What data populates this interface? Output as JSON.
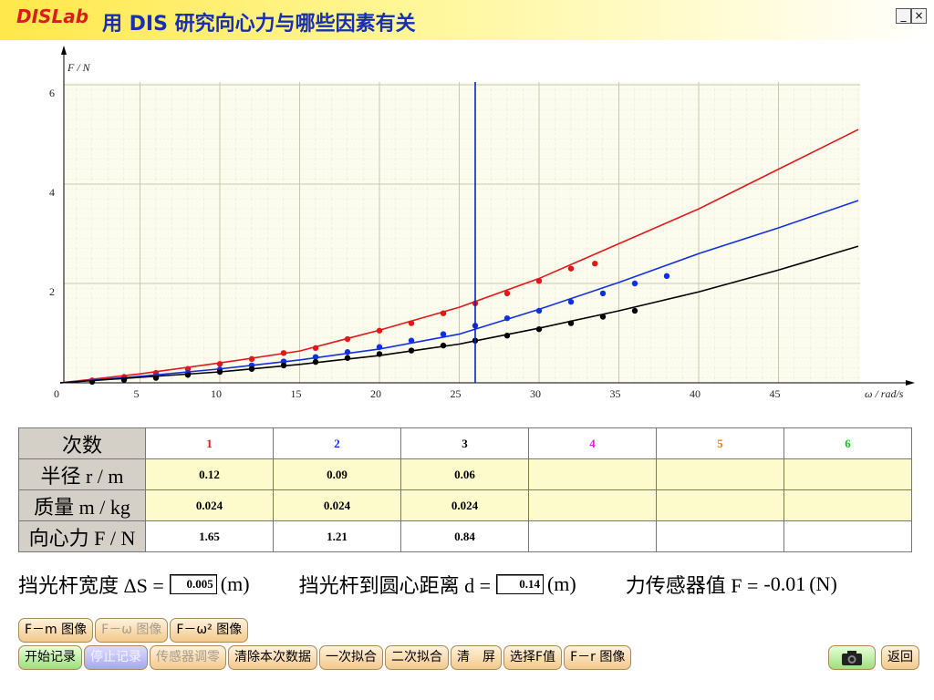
{
  "header": {
    "logo": "DISLab",
    "title": "用 DIS 研究向心力与哪些因素有关"
  },
  "chart_data": {
    "type": "scatter",
    "x_label": "ω / rad/s",
    "y_label": "F / N",
    "xlim": [
      0,
      50
    ],
    "ylim": [
      0,
      6
    ],
    "xticks": [
      0,
      5,
      10,
      15,
      20,
      25,
      30,
      35,
      40,
      45
    ],
    "yticks": [
      2,
      4,
      6
    ],
    "grid": true,
    "cursor_x": 26,
    "cursor_color": "#1020c0",
    "series": [
      {
        "mode": "markers",
        "color": "#e01818",
        "x": [
          2,
          4,
          6,
          8,
          10,
          12,
          14,
          16,
          18,
          20,
          22,
          24,
          26,
          28,
          30,
          32,
          33.5
        ],
        "values": [
          0.05,
          0.12,
          0.2,
          0.28,
          0.38,
          0.48,
          0.6,
          0.7,
          0.88,
          1.05,
          1.2,
          1.4,
          1.6,
          1.8,
          2.05,
          2.3,
          2.4
        ]
      },
      {
        "mode": "markers",
        "color": "#1030e0",
        "x": [
          2,
          4,
          6,
          8,
          10,
          12,
          14,
          16,
          18,
          20,
          22,
          24,
          26,
          28,
          30,
          32,
          34,
          36,
          38
        ],
        "values": [
          0.03,
          0.08,
          0.13,
          0.2,
          0.27,
          0.35,
          0.43,
          0.52,
          0.62,
          0.72,
          0.85,
          0.98,
          1.15,
          1.3,
          1.45,
          1.63,
          1.8,
          2.0,
          2.15
        ]
      },
      {
        "mode": "markers",
        "color": "#000000",
        "x": [
          2,
          4,
          6,
          8,
          10,
          12,
          14,
          16,
          18,
          20,
          22,
          24,
          26,
          28,
          30,
          32,
          34,
          36
        ],
        "values": [
          0.02,
          0.06,
          0.1,
          0.16,
          0.22,
          0.28,
          0.35,
          0.42,
          0.5,
          0.58,
          0.65,
          0.75,
          0.85,
          0.95,
          1.08,
          1.2,
          1.33,
          1.45
        ]
      },
      {
        "mode": "line",
        "color": "#e01818",
        "x": [
          0,
          5,
          10,
          15,
          20,
          25,
          30,
          35,
          40,
          45,
          50
        ],
        "values": [
          0,
          0.18,
          0.4,
          0.64,
          1.06,
          1.52,
          2.1,
          2.8,
          3.5,
          4.3,
          5.1
        ]
      },
      {
        "mode": "line",
        "color": "#1030e0",
        "x": [
          0,
          5,
          10,
          15,
          20,
          25,
          30,
          35,
          40,
          45,
          50
        ],
        "values": [
          0,
          0.13,
          0.28,
          0.46,
          0.68,
          0.98,
          1.48,
          2.02,
          2.6,
          3.12,
          3.67
        ]
      },
      {
        "mode": "line",
        "color": "#000000",
        "x": [
          0,
          5,
          10,
          15,
          20,
          25,
          30,
          35,
          40,
          45,
          50
        ],
        "values": [
          0,
          0.11,
          0.22,
          0.37,
          0.55,
          0.78,
          1.1,
          1.45,
          1.83,
          2.27,
          2.75
        ]
      }
    ]
  },
  "table": {
    "header": [
      "次数",
      "1",
      "2",
      "3",
      "4",
      "5",
      "6"
    ],
    "column_colors": [
      "#e01818",
      "#1030e0",
      "#000000",
      "#e020e0",
      "#f08010",
      "#20c020"
    ],
    "rows": [
      [
        "半径 r / m",
        "0.12",
        "0.09",
        "0.06",
        "",
        "",
        ""
      ],
      [
        "质量 m / kg",
        "0.024",
        "0.024",
        "0.024",
        "",
        "",
        ""
      ],
      [
        "向心力 F / N",
        "1.65",
        "1.21",
        "0.84",
        "",
        "",
        ""
      ]
    ]
  },
  "inputs": [
    {
      "label": "挡光杆宽度 ΔS =",
      "value": "0.005",
      "unit": "(m)",
      "boxed": true
    },
    {
      "label": "挡光杆到圆心距离 d =",
      "value": "0.14",
      "unit": "(m)",
      "boxed": true
    },
    {
      "label": "力传感器值 F =",
      "value": "-0.01",
      "unit": "(N)",
      "boxed": false
    }
  ],
  "buttons": {
    "row1": [
      {
        "label": "F－m 图像",
        "enabled": true
      },
      {
        "label": "F－ω 图像",
        "enabled": false
      },
      {
        "label": "F－ω² 图像",
        "enabled": true
      }
    ],
    "row2": [
      {
        "label": "开始记录",
        "enabled": true,
        "style": "green"
      },
      {
        "label": "停止记录",
        "enabled": false,
        "style": "lavender"
      },
      {
        "label": "传感器调零",
        "enabled": false
      },
      {
        "label": "清除本次数据",
        "enabled": true
      },
      {
        "label": "一次拟合",
        "enabled": true
      },
      {
        "label": "二次拟合",
        "enabled": true
      },
      {
        "label": "清　屏",
        "enabled": true
      },
      {
        "label": "选择F值",
        "enabled": true
      },
      {
        "label": "F－r 图像",
        "enabled": true
      }
    ],
    "back": "返回"
  }
}
